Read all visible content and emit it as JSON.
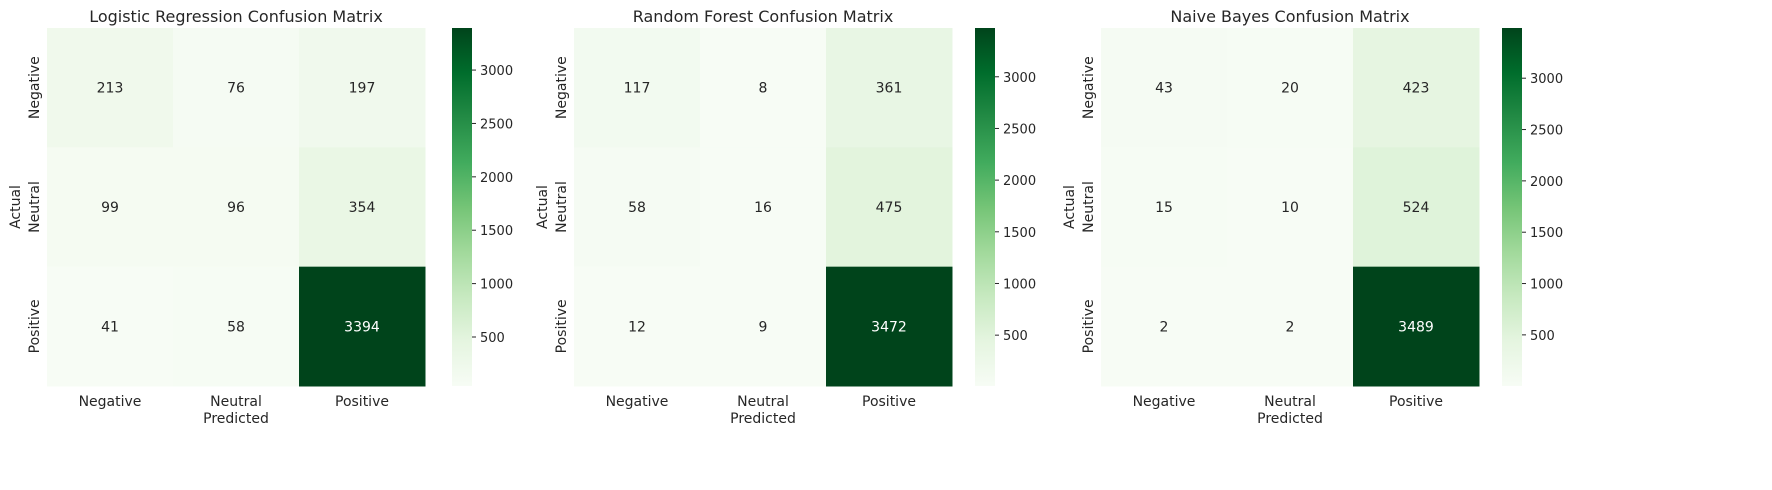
{
  "colormap": {
    "stops": [
      "#f7fcf5",
      "#e5f5e0",
      "#c7e9c0",
      "#a1d99b",
      "#74c476",
      "#41ab5d",
      "#238b45",
      "#006d2c",
      "#00441b"
    ]
  },
  "chart_data": [
    {
      "type": "heatmap",
      "title": "Logistic Regression Confusion Matrix",
      "xlabel": "Predicted",
      "ylabel": "Actual",
      "x_categories": [
        "Negative",
        "Neutral",
        "Positive"
      ],
      "y_categories": [
        "Negative",
        "Neutral",
        "Positive"
      ],
      "values": [
        [
          213,
          76,
          197
        ],
        [
          99,
          96,
          354
        ],
        [
          41,
          58,
          3394
        ]
      ],
      "colorbar": {
        "vmin": 41,
        "vmax": 3394,
        "ticks": [
          500,
          1000,
          1500,
          2000,
          2500,
          3000
        ]
      },
      "grid": false
    },
    {
      "type": "heatmap",
      "title": "Random Forest Confusion Matrix",
      "xlabel": "Predicted",
      "ylabel": "Actual",
      "x_categories": [
        "Negative",
        "Neutral",
        "Positive"
      ],
      "y_categories": [
        "Negative",
        "Neutral",
        "Positive"
      ],
      "values": [
        [
          117,
          8,
          361
        ],
        [
          58,
          16,
          475
        ],
        [
          12,
          9,
          3472
        ]
      ],
      "colorbar": {
        "vmin": 8,
        "vmax": 3472,
        "ticks": [
          500,
          1000,
          1500,
          2000,
          2500,
          3000
        ]
      },
      "grid": false
    },
    {
      "type": "heatmap",
      "title": "Naive Bayes Confusion Matrix",
      "xlabel": "Predicted",
      "ylabel": "Actual",
      "x_categories": [
        "Negative",
        "Neutral",
        "Positive"
      ],
      "y_categories": [
        "Negative",
        "Neutral",
        "Positive"
      ],
      "values": [
        [
          43,
          20,
          423
        ],
        [
          15,
          10,
          524
        ],
        [
          2,
          2,
          3489
        ]
      ],
      "colorbar": {
        "vmin": 2,
        "vmax": 3489,
        "ticks": [
          500,
          1000,
          1500,
          2000,
          2500,
          3000
        ]
      },
      "grid": false
    }
  ]
}
